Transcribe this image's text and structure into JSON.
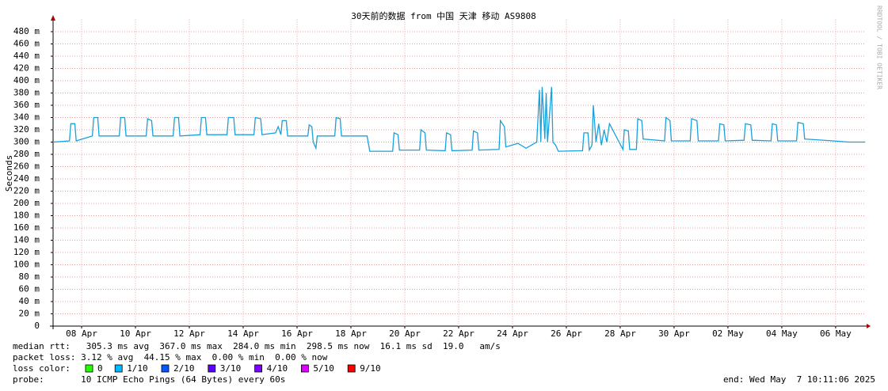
{
  "chart_data": {
    "type": "line",
    "title": "30天前的数据 from 中国 天津 移动 AS9808",
    "y_label": "Seconds",
    "watermark": "RRDTOOL / TOBI OETIKER",
    "color": "#1aa0dc",
    "grid": true,
    "xlim": [
      6.94,
      37.12
    ],
    "xticks": [
      {
        "value": 8,
        "label": "08 Apr"
      },
      {
        "value": 10,
        "label": "10 Apr"
      },
      {
        "value": 12,
        "label": "12 Apr"
      },
      {
        "value": 14,
        "label": "14 Apr"
      },
      {
        "value": 16,
        "label": "16 Apr"
      },
      {
        "value": 18,
        "label": "18 Apr"
      },
      {
        "value": 20,
        "label": "20 Apr"
      },
      {
        "value": 22,
        "label": "22 Apr"
      },
      {
        "value": 24,
        "label": "24 Apr"
      },
      {
        "value": 26,
        "label": "26 Apr"
      },
      {
        "value": 28,
        "label": "28 Apr"
      },
      {
        "value": 30,
        "label": "30 Apr"
      },
      {
        "value": 32,
        "label": "02 May"
      },
      {
        "value": 34,
        "label": "04 May"
      },
      {
        "value": 36,
        "label": "06 May"
      }
    ],
    "ylim": [
      0,
      500
    ],
    "yticks": [
      0,
      {
        "value": 20,
        "label": "20 m"
      },
      {
        "value": 40,
        "label": "40 m"
      },
      {
        "value": 60,
        "label": "60 m"
      },
      {
        "value": 80,
        "label": "80 m"
      },
      {
        "value": 100,
        "label": "100 m"
      },
      {
        "value": 120,
        "label": "120 m"
      },
      {
        "value": 140,
        "label": "140 m"
      },
      {
        "value": 160,
        "label": "160 m"
      },
      {
        "value": 180,
        "label": "180 m"
      },
      {
        "value": 200,
        "label": "200 m"
      },
      {
        "value": 220,
        "label": "220 m"
      },
      {
        "value": 240,
        "label": "240 m"
      },
      {
        "value": 260,
        "label": "260 m"
      },
      {
        "value": 280,
        "label": "280 m"
      },
      {
        "value": 300,
        "label": "300 m"
      },
      {
        "value": 320,
        "label": "320 m"
      },
      {
        "value": 340,
        "label": "340 m"
      },
      {
        "value": 360,
        "label": "360 m"
      },
      {
        "value": 380,
        "label": "380 m"
      },
      {
        "value": 400,
        "label": "400 m"
      },
      {
        "value": 420,
        "label": "420 m"
      },
      {
        "value": 440,
        "label": "440 m"
      },
      {
        "value": 460,
        "label": "460 m"
      },
      {
        "value": 480,
        "label": "480 m"
      }
    ],
    "x": [
      6.95,
      7.55,
      7.6,
      7.75,
      7.8,
      8.4,
      8.45,
      8.6,
      8.65,
      9.4,
      9.45,
      9.6,
      9.65,
      10.4,
      10.45,
      10.6,
      10.65,
      11.4,
      11.45,
      11.6,
      11.65,
      12.4,
      12.45,
      12.6,
      12.65,
      13.4,
      13.45,
      13.65,
      13.7,
      14.4,
      14.45,
      14.65,
      14.7,
      15.2,
      15.3,
      15.4,
      15.45,
      15.6,
      15.65,
      16.4,
      16.45,
      16.55,
      16.6,
      16.7,
      16.75,
      17.4,
      17.45,
      17.6,
      17.65,
      18.6,
      18.7,
      19.55,
      19.6,
      19.75,
      19.8,
      20.55,
      20.6,
      20.75,
      20.8,
      21.5,
      21.55,
      21.7,
      21.75,
      22.5,
      22.55,
      22.7,
      22.75,
      23.5,
      23.55,
      23.7,
      23.75,
      24.2,
      24.5,
      24.9,
      25.0,
      25.05,
      25.1,
      25.2,
      25.25,
      25.3,
      25.45,
      25.5,
      25.6,
      25.7,
      26.6,
      26.65,
      26.8,
      26.85,
      26.95,
      27.0,
      27.1,
      27.2,
      27.3,
      27.4,
      27.5,
      27.6,
      28.1,
      28.15,
      28.3,
      28.35,
      28.6,
      28.65,
      28.8,
      28.85,
      29.65,
      29.7,
      29.85,
      29.9,
      30.6,
      30.65,
      30.85,
      30.9,
      31.65,
      31.7,
      31.85,
      31.9,
      32.6,
      32.65,
      32.85,
      32.9,
      33.6,
      33.65,
      33.8,
      33.85,
      34.55,
      34.6,
      34.8,
      34.85,
      35.9,
      36.5,
      37.1
    ],
    "values": [
      300,
      302,
      330,
      330,
      302,
      310,
      340,
      340,
      310,
      310,
      340,
      340,
      310,
      310,
      338,
      335,
      310,
      310,
      340,
      340,
      310,
      312,
      340,
      340,
      312,
      312,
      340,
      340,
      312,
      312,
      340,
      338,
      312,
      315,
      325,
      312,
      335,
      335,
      310,
      310,
      328,
      325,
      300,
      290,
      310,
      310,
      340,
      338,
      310,
      310,
      285,
      285,
      315,
      312,
      287,
      287,
      320,
      315,
      287,
      286,
      315,
      312,
      286,
      287,
      318,
      315,
      287,
      288,
      335,
      325,
      292,
      298,
      290,
      300,
      385,
      300,
      390,
      305,
      380,
      300,
      390,
      300,
      295,
      285,
      286,
      315,
      315,
      287,
      295,
      360,
      300,
      330,
      295,
      320,
      300,
      330,
      288,
      320,
      318,
      288,
      288,
      338,
      335,
      305,
      302,
      340,
      335,
      302,
      302,
      338,
      335,
      302,
      302,
      330,
      328,
      302,
      303,
      330,
      328,
      303,
      302,
      330,
      328,
      302,
      302,
      332,
      330,
      305,
      302,
      300,
      300
    ],
    "stats": {
      "median": "median rtt:   305.3 ms avg  367.0 ms max  284.0 ms min  298.5 ms now  16.1 ms sd  19.0   am/s",
      "loss": "packet loss: 3.12 % avg  44.15 % max  0.00 % min  0.00 % now",
      "loss_color_label": "loss color:",
      "probe": "probe:       10 ICMP Echo Pings (64 Bytes) every 60s",
      "end": "end: Wed May  7 10:11:06 2025"
    },
    "loss_colors": [
      {
        "label": "0",
        "color": "#26ff00"
      },
      {
        "label": "1/10",
        "color": "#00b8ff"
      },
      {
        "label": "2/10",
        "color": "#0059ff"
      },
      {
        "label": "3/10",
        "color": "#5e00ff"
      },
      {
        "label": "4/10",
        "color": "#7e00ff"
      },
      {
        "label": "5/10",
        "color": "#dd00ff"
      },
      {
        "label": "9/10",
        "color": "#ff0000"
      }
    ]
  }
}
